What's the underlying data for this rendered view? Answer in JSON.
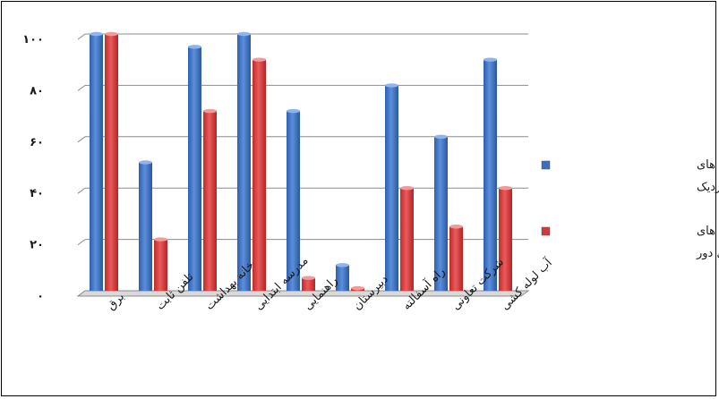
{
  "chart_data": {
    "type": "bar",
    "title": "",
    "xlabel": "",
    "ylabel": "",
    "ylim": [
      0,
      100
    ],
    "yticks": [
      0,
      20,
      40,
      60,
      80,
      100
    ],
    "ytick_labels": [
      "۰",
      "۲۰",
      "۴۰",
      "۶۰",
      "۸۰",
      "۱۰۰"
    ],
    "grid": "horizontal",
    "legend_position": "right",
    "categories": [
      "برق",
      "تلفن ثابت",
      "خانه بهداشت",
      "مدرسه ابتدایی",
      "راهنمایی",
      "دبیرستان",
      "راه آسفالته",
      "شرکت تعاونی",
      "آب لوله کشی"
    ],
    "series": [
      {
        "name": "درصد از کل نمونه های روستاهای نزدیک",
        "legend_lines": [
          "درصد از کل نمونه های",
          "روستاهای نزدیک"
        ],
        "color": "#3a6fbf",
        "values": [
          100,
          50,
          95,
          100,
          70,
          10,
          80,
          60,
          90
        ]
      },
      {
        "name": "درصد از کل نمونه های روستایی دور",
        "legend_lines": [
          "درصد از کل نمونه های",
          "روستایی دور"
        ],
        "color": "#d23a3a",
        "values": [
          100,
          20,
          70,
          90,
          5,
          1,
          40,
          25,
          40
        ]
      }
    ]
  }
}
